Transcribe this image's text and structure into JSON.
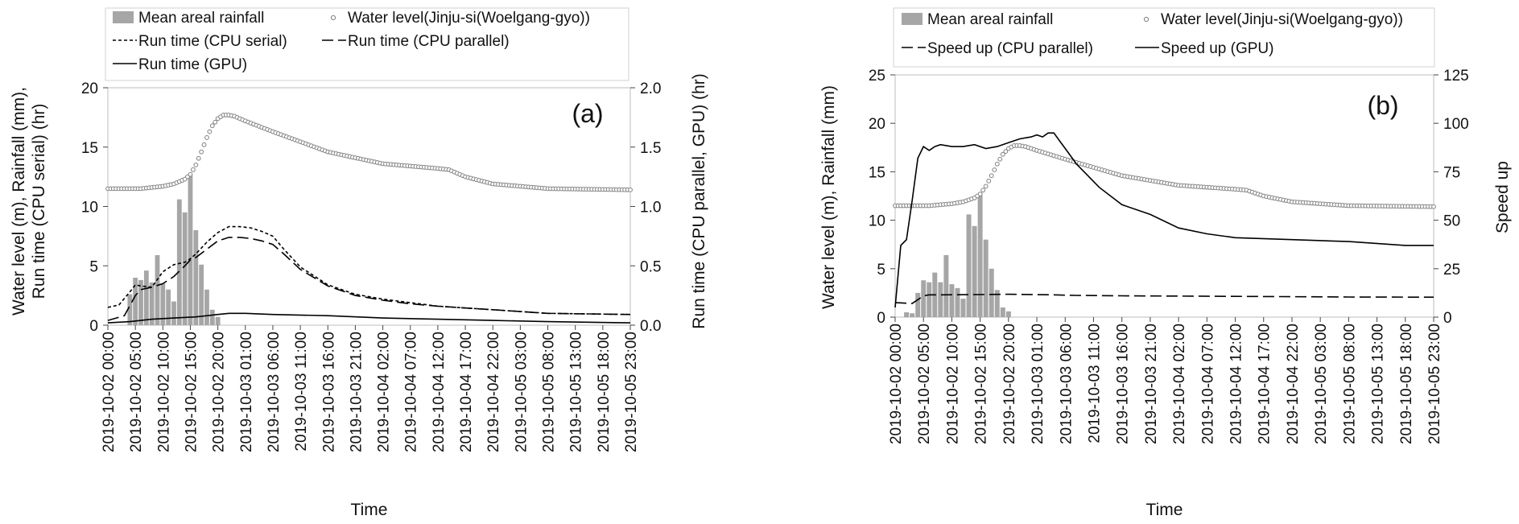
{
  "xtick_labels": [
    "2019-10-02 00:00",
    "2019-10-02 05:00",
    "2019-10-02 10:00",
    "2019-10-02 15:00",
    "2019-10-02 20:00",
    "2019-10-03 01:00",
    "2019-10-03 06:00",
    "2019-10-03 11:00",
    "2019-10-03 16:00",
    "2019-10-03 21:00",
    "2019-10-04 02:00",
    "2019-10-04 07:00",
    "2019-10-04 12:00",
    "2019-10-04 17:00",
    "2019-10-04 22:00",
    "2019-10-05 03:00",
    "2019-10-05 08:00",
    "2019-10-05 13:00",
    "2019-10-05 18:00",
    "2019-10-05 23:00"
  ],
  "chart_data": [
    {
      "type": "bar",
      "panel_label": "(a)",
      "xlabel": "Time",
      "ylabel": "Water level (m), Rainfall (mm), Run time (CPU serial) (hr)",
      "ylabel_lines": [
        "Water level (m), Rainfall (mm),",
        "Run time (CPU serial) (hr)"
      ],
      "ylabel_right": "Run time (CPU parallel, GPU) (hr)",
      "ylim": [
        0,
        20
      ],
      "y_ticks": [
        0,
        5,
        10,
        15,
        20
      ],
      "ylim_right": [
        0,
        2
      ],
      "y_ticks_right": [
        "0.0",
        "0.5",
        "1.0",
        "1.5",
        "2.0"
      ],
      "x_hours": [
        0,
        95
      ],
      "legend": [
        "Mean areal rainfall",
        "Water level(Jinju-si(Woelgang-gyo))",
        "Run time (CPU serial)",
        "Run time (CPU parallel)",
        "Run time (GPU)"
      ],
      "series": [
        {
          "name": "Mean areal rainfall",
          "kind": "bar",
          "axis": "left",
          "x": [
            4,
            5,
            6,
            7,
            8,
            9,
            10,
            11,
            12,
            13,
            14,
            15,
            16,
            17,
            18,
            19,
            20
          ],
          "values": [
            2.6,
            4.0,
            3.8,
            4.6,
            3.6,
            5.9,
            3.5,
            3.0,
            2.0,
            10.6,
            9.5,
            12.6,
            8.0,
            5.1,
            3.0,
            1.3,
            0.7
          ]
        },
        {
          "name": "Water level(Jinju-si(Woelgang-gyo))",
          "kind": "scatter",
          "axis": "left",
          "x": [
            0,
            6,
            10,
            12,
            14,
            15,
            16,
            17,
            18,
            19,
            20,
            21,
            22,
            23,
            24,
            25,
            30,
            40,
            50,
            60,
            62,
            65,
            70,
            80,
            95
          ],
          "values": [
            11.5,
            11.5,
            11.7,
            11.9,
            12.3,
            12.7,
            13.5,
            14.6,
            15.8,
            16.8,
            17.4,
            17.7,
            17.7,
            17.6,
            17.4,
            17.2,
            16.3,
            14.6,
            13.6,
            13.2,
            13.1,
            12.5,
            11.9,
            11.5,
            11.4
          ]
        },
        {
          "name": "Run time (CPU serial)",
          "kind": "line",
          "dash": "short",
          "axis": "left",
          "x": [
            0,
            2,
            4,
            5,
            6,
            8,
            10,
            12,
            14,
            15,
            16,
            18,
            20,
            22,
            24,
            26,
            28,
            30,
            32,
            35,
            40,
            45,
            50,
            55,
            60,
            70,
            80,
            95
          ],
          "values": [
            1.5,
            1.7,
            2.8,
            3.4,
            3.3,
            3.2,
            4.5,
            5.1,
            5.3,
            5.6,
            6.0,
            7.0,
            7.8,
            8.3,
            8.3,
            8.2,
            7.9,
            7.5,
            6.4,
            4.9,
            3.4,
            2.6,
            2.2,
            1.9,
            1.6,
            1.3,
            1.0,
            0.9
          ]
        },
        {
          "name": "Run time (CPU parallel)",
          "kind": "line",
          "dash": "long",
          "axis": "right",
          "x": [
            0,
            3,
            5,
            6,
            8,
            10,
            12,
            14,
            15,
            16,
            18,
            20,
            22,
            24,
            26,
            28,
            30,
            32,
            35,
            40,
            45,
            50,
            55,
            60,
            70,
            80,
            95
          ],
          "values": [
            0.04,
            0.08,
            0.25,
            0.3,
            0.32,
            0.35,
            0.41,
            0.5,
            0.55,
            0.57,
            0.64,
            0.71,
            0.74,
            0.74,
            0.73,
            0.71,
            0.68,
            0.6,
            0.47,
            0.33,
            0.25,
            0.21,
            0.18,
            0.16,
            0.13,
            0.1,
            0.09
          ]
        },
        {
          "name": "Run time (GPU)",
          "kind": "line",
          "dash": "solid",
          "axis": "right",
          "x": [
            0,
            4,
            8,
            12,
            16,
            20,
            22,
            25,
            30,
            40,
            50,
            60,
            70,
            80,
            95
          ],
          "values": [
            0.02,
            0.03,
            0.05,
            0.06,
            0.07,
            0.09,
            0.1,
            0.1,
            0.09,
            0.08,
            0.06,
            0.05,
            0.04,
            0.03,
            0.02
          ]
        }
      ]
    },
    {
      "type": "bar",
      "panel_label": "(b)",
      "xlabel": "Time",
      "ylabel": "Water level (m), Rainfall (mm)",
      "ylabel_right": "Speed up",
      "ylim": [
        0,
        25
      ],
      "y_ticks": [
        0,
        5,
        10,
        15,
        20,
        25
      ],
      "ylim_right": [
        0,
        125
      ],
      "y_ticks_right": [
        "0",
        "25",
        "50",
        "75",
        "100",
        "125"
      ],
      "x_hours": [
        0,
        95
      ],
      "legend": [
        "Mean areal rainfall",
        "Water level(Jinju-si(Woelgang-gyo))",
        "Speed up (CPU parallel)",
        "Speed up (GPU)"
      ],
      "series": [
        {
          "name": "Mean areal rainfall",
          "kind": "bar",
          "axis": "left",
          "x": [
            2,
            3,
            4,
            5,
            6,
            7,
            8,
            9,
            10,
            11,
            12,
            13,
            14,
            15,
            16,
            17,
            18,
            19,
            20
          ],
          "values": [
            0.5,
            0.4,
            2.5,
            3.8,
            3.6,
            4.6,
            3.6,
            6.4,
            3.4,
            3.0,
            1.9,
            10.6,
            9.4,
            12.6,
            8.0,
            5.0,
            2.8,
            1.0,
            0.6
          ]
        },
        {
          "name": "Water level(Jinju-si(Woelgang-gyo))",
          "kind": "scatter",
          "axis": "left",
          "x": [
            0,
            6,
            10,
            12,
            14,
            15,
            16,
            17,
            18,
            19,
            20,
            21,
            22,
            23,
            24,
            25,
            30,
            40,
            50,
            60,
            62,
            65,
            70,
            80,
            95
          ],
          "values": [
            11.5,
            11.5,
            11.7,
            11.9,
            12.3,
            12.7,
            13.5,
            14.6,
            15.8,
            16.8,
            17.4,
            17.7,
            17.7,
            17.6,
            17.4,
            17.2,
            16.3,
            14.6,
            13.6,
            13.2,
            13.1,
            12.5,
            11.9,
            11.5,
            11.4
          ]
        },
        {
          "name": "Speed up (CPU parallel)",
          "kind": "line",
          "dash": "long",
          "axis": "right",
          "x": [
            0,
            3,
            4,
            5,
            6,
            8,
            12,
            20,
            28,
            32,
            40,
            60,
            80,
            95
          ],
          "values": [
            7.5,
            7.0,
            9.0,
            11.0,
            11.5,
            11.5,
            11.6,
            11.8,
            11.5,
            11.2,
            11.0,
            10.7,
            10.4,
            10.3
          ]
        },
        {
          "name": "Speed up (GPU)",
          "kind": "line",
          "dash": "solid",
          "axis": "right",
          "x": [
            0,
            1,
            2,
            3,
            4,
            5,
            6,
            7,
            8,
            10,
            12,
            14,
            16,
            18,
            20,
            22,
            24,
            25,
            26,
            27,
            28,
            29,
            30,
            31,
            32,
            34,
            36,
            40,
            45,
            50,
            55,
            60,
            70,
            80,
            90,
            95
          ],
          "values": [
            5,
            37,
            40,
            60,
            82,
            88,
            86,
            88,
            89,
            88,
            88,
            89,
            87,
            88,
            90,
            92,
            93,
            94,
            93,
            95,
            95,
            91,
            87,
            83,
            79,
            73,
            67,
            58,
            53,
            46,
            43,
            41,
            40,
            39,
            37,
            37
          ]
        }
      ]
    }
  ]
}
